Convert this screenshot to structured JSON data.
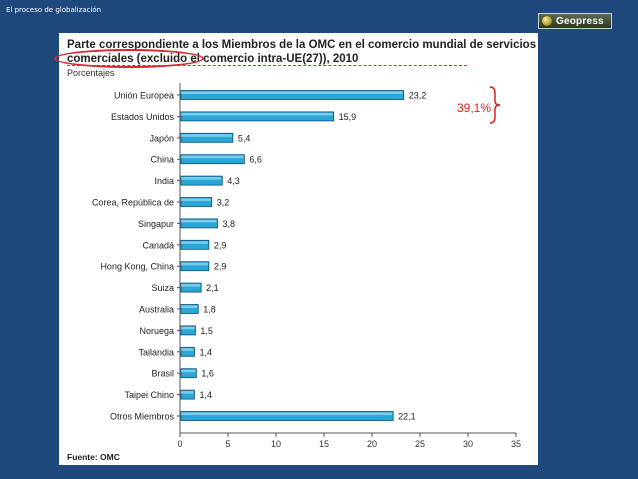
{
  "slide": {
    "header": "El proceso de globalización"
  },
  "logo": {
    "text": "Geopress"
  },
  "annotation": {
    "text": "39,1%"
  },
  "source": "Fuente: OMC",
  "chart_data": {
    "type": "bar",
    "orientation": "horizontal",
    "title": "Parte correspondiente a los Miembros de la OMC en el comercio mundial de servicios comerciales (excluido el comercio intra-UE(27)), 2010",
    "ylabel": "Porcentajes",
    "xlabel": "",
    "xlim": [
      0,
      35
    ],
    "xticks": [
      "0",
      "5",
      "10",
      "15",
      "20",
      "25",
      "30",
      "35"
    ],
    "grid": false,
    "legend": "none",
    "bar_color": "#2aa7d8",
    "categories": [
      "Unión Europea",
      "Estados Unidos",
      "Japón",
      "China",
      "India",
      "Corea, República de",
      "Singapur",
      "Canadá",
      "Hong Kong, China",
      "Suiza",
      "Australia",
      "Noruega",
      "Tailandia",
      "Brasil",
      "Taipei Chino",
      "Otros Miembros"
    ],
    "values": [
      23.2,
      15.9,
      5.4,
      6.6,
      4.3,
      3.2,
      3.8,
      2.9,
      2.9,
      2.1,
      1.8,
      1.5,
      1.4,
      1.6,
      1.4,
      22.1
    ],
    "value_labels": [
      "23,2",
      "15,9",
      "5,4",
      "6,6",
      "4,3",
      "3,2",
      "3,8",
      "2,9",
      "2,9",
      "2,1",
      "1,8",
      "1,5",
      "1,4",
      "1,6",
      "1,4",
      "22,1"
    ]
  }
}
